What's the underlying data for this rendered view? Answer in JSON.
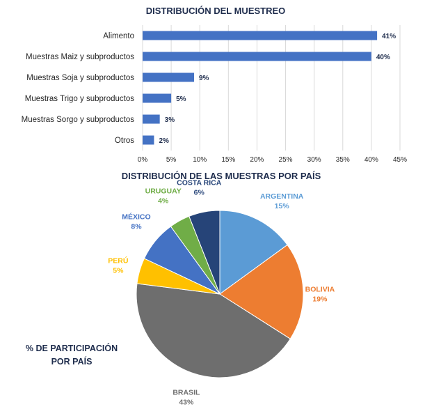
{
  "chart_data": [
    {
      "type": "bar",
      "orientation": "horizontal",
      "title": "DISTRIBUCIÓN DEL MUESTREO",
      "categories": [
        "Alimento",
        "Muestras Maiz y subproductos",
        "Muestras Soja y subproductos",
        "Muestras Trigo y subproductos",
        "Muestras Sorgo y subproductos",
        "Otros"
      ],
      "values": [
        41,
        40,
        9,
        5,
        3,
        2
      ],
      "data_labels": [
        "41%",
        "40%",
        "9%",
        "5%",
        "3%",
        "2%"
      ],
      "x_ticks": [
        "0%",
        "5%",
        "10%",
        "15%",
        "20%",
        "25%",
        "30%",
        "35%",
        "40%",
        "45%"
      ],
      "xlim": [
        0,
        45
      ],
      "grid": true,
      "color": "#4472c4"
    },
    {
      "type": "pie",
      "title": "DISTRIBUCIÓN DE LAS MUESTRAS POR PAÍS",
      "note": [
        "% DE PARTICIPACIÓN",
        "POR PAÍS"
      ],
      "slices": [
        {
          "name": "ARGENTINA",
          "value": 15,
          "label": "15%",
          "color": "#5b9bd5"
        },
        {
          "name": "BOLIVIA",
          "value": 19,
          "label": "19%",
          "color": "#ed7d31"
        },
        {
          "name": "BRASIL",
          "value": 43,
          "label": "43%",
          "color": "#6e6e6e"
        },
        {
          "name": "PERÚ",
          "value": 5,
          "label": "5%",
          "color": "#ffc000"
        },
        {
          "name": "MÉXICO",
          "value": 8,
          "label": "8%",
          "color": "#4472c4"
        },
        {
          "name": "URUGUAY",
          "value": 4,
          "label": "4%",
          "color": "#70ad47"
        },
        {
          "name": "COSTA RICA",
          "value": 6,
          "label": "6%",
          "color": "#264478"
        }
      ]
    }
  ]
}
